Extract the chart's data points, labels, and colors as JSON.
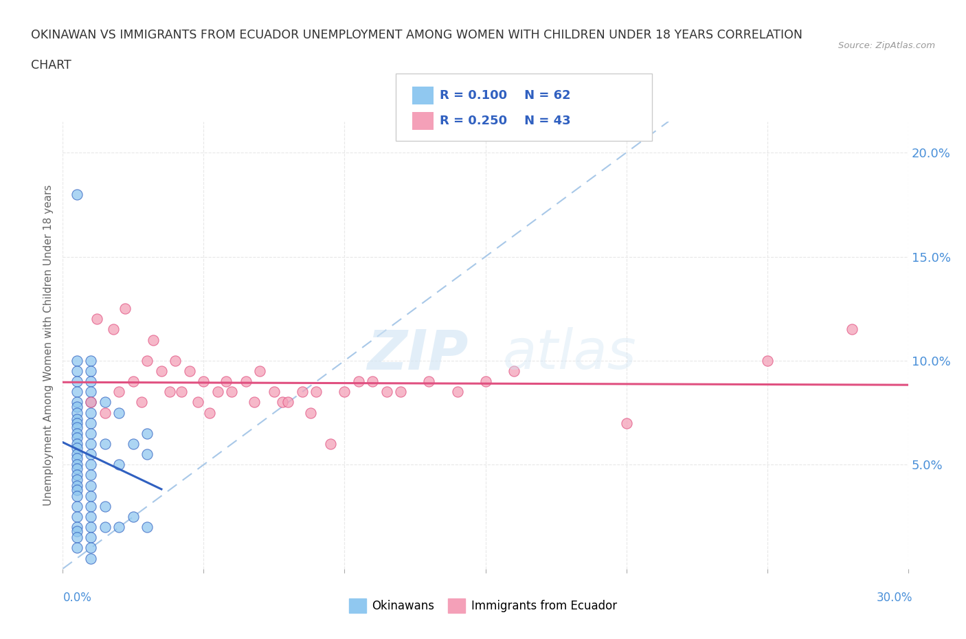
{
  "title_line1": "OKINAWAN VS IMMIGRANTS FROM ECUADOR UNEMPLOYMENT AMONG WOMEN WITH CHILDREN UNDER 18 YEARS CORRELATION",
  "title_line2": "CHART",
  "source": "Source: ZipAtlas.com",
  "ylabel": "Unemployment Among Women with Children Under 18 years",
  "yticks": [
    "5.0%",
    "10.0%",
    "15.0%",
    "20.0%"
  ],
  "ytick_vals": [
    0.05,
    0.1,
    0.15,
    0.2
  ],
  "xrange": [
    0.0,
    0.3
  ],
  "yrange": [
    0.0,
    0.215
  ],
  "legend_R1": "R = 0.100",
  "legend_N1": "N = 62",
  "legend_R2": "R = 0.250",
  "legend_N2": "N = 43",
  "color_okinawan": "#90C8F0",
  "color_ecuador": "#F4A0B8",
  "color_trend_okinawan": "#3060C0",
  "color_trend_ecuador": "#E05080",
  "color_diagonal": "#A8C8E8",
  "okinawan_x": [
    0.005,
    0.005,
    0.005,
    0.005,
    0.005,
    0.005,
    0.005,
    0.005,
    0.005,
    0.005,
    0.005,
    0.005,
    0.005,
    0.005,
    0.005,
    0.005,
    0.005,
    0.005,
    0.005,
    0.005,
    0.005,
    0.005,
    0.005,
    0.005,
    0.005,
    0.005,
    0.005,
    0.005,
    0.005,
    0.005,
    0.01,
    0.01,
    0.01,
    0.01,
    0.01,
    0.01,
    0.01,
    0.01,
    0.01,
    0.01,
    0.01,
    0.01,
    0.01,
    0.01,
    0.01,
    0.01,
    0.01,
    0.01,
    0.01,
    0.01,
    0.015,
    0.015,
    0.015,
    0.015,
    0.02,
    0.02,
    0.02,
    0.025,
    0.025,
    0.03,
    0.03,
    0.03
  ],
  "okinawan_y": [
    0.18,
    0.1,
    0.095,
    0.09,
    0.085,
    0.08,
    0.078,
    0.075,
    0.072,
    0.07,
    0.068,
    0.065,
    0.063,
    0.06,
    0.058,
    0.055,
    0.053,
    0.05,
    0.048,
    0.045,
    0.043,
    0.04,
    0.038,
    0.035,
    0.03,
    0.025,
    0.02,
    0.018,
    0.015,
    0.01,
    0.1,
    0.095,
    0.09,
    0.085,
    0.08,
    0.075,
    0.07,
    0.065,
    0.06,
    0.055,
    0.05,
    0.045,
    0.04,
    0.035,
    0.03,
    0.025,
    0.02,
    0.015,
    0.01,
    0.005,
    0.08,
    0.06,
    0.03,
    0.02,
    0.075,
    0.05,
    0.02,
    0.06,
    0.025,
    0.065,
    0.055,
    0.02
  ],
  "ecuador_x": [
    0.01,
    0.012,
    0.015,
    0.018,
    0.02,
    0.022,
    0.025,
    0.028,
    0.03,
    0.032,
    0.035,
    0.038,
    0.04,
    0.042,
    0.045,
    0.048,
    0.05,
    0.052,
    0.055,
    0.058,
    0.06,
    0.065,
    0.068,
    0.07,
    0.075,
    0.078,
    0.08,
    0.085,
    0.088,
    0.09,
    0.095,
    0.1,
    0.105,
    0.11,
    0.115,
    0.12,
    0.13,
    0.14,
    0.15,
    0.16,
    0.2,
    0.25,
    0.28
  ],
  "ecuador_y": [
    0.08,
    0.12,
    0.075,
    0.115,
    0.085,
    0.125,
    0.09,
    0.08,
    0.1,
    0.11,
    0.095,
    0.085,
    0.1,
    0.085,
    0.095,
    0.08,
    0.09,
    0.075,
    0.085,
    0.09,
    0.085,
    0.09,
    0.08,
    0.095,
    0.085,
    0.08,
    0.08,
    0.085,
    0.075,
    0.085,
    0.06,
    0.085,
    0.09,
    0.09,
    0.085,
    0.085,
    0.09,
    0.085,
    0.09,
    0.095,
    0.07,
    0.1,
    0.115
  ],
  "background_color": "#FFFFFF",
  "grid_color": "#E8E8E8"
}
